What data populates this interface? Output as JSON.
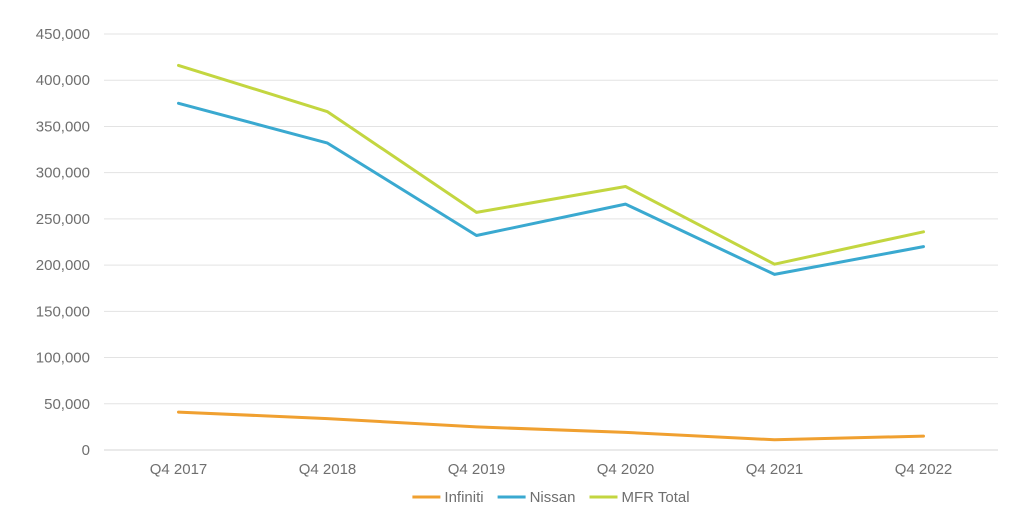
{
  "chart_data": {
    "type": "line",
    "title": "",
    "xlabel": "",
    "ylabel": "",
    "categories": [
      "Q4 2017",
      "Q4 2018",
      "Q4 2019",
      "Q4 2020",
      "Q4 2021",
      "Q4 2022"
    ],
    "ylim": [
      0,
      450000
    ],
    "yticks": [
      0,
      50000,
      100000,
      150000,
      200000,
      250000,
      300000,
      350000,
      400000,
      450000
    ],
    "ytick_labels": [
      "0",
      "50,000",
      "100,000",
      "150,000",
      "200,000",
      "250,000",
      "300,000",
      "350,000",
      "400,000",
      "450,000"
    ],
    "grid": true,
    "legend_position": "bottom",
    "series": [
      {
        "name": "Infiniti",
        "color": "#f0a030",
        "values": [
          41000,
          34000,
          25000,
          19000,
          11000,
          15000
        ]
      },
      {
        "name": "Nissan",
        "color": "#3aa9d0",
        "values": [
          375000,
          332000,
          232000,
          266000,
          190000,
          220000
        ]
      },
      {
        "name": "MFR Total",
        "color": "#c3d640",
        "values": [
          416000,
          366000,
          257000,
          285000,
          201000,
          236000
        ]
      }
    ]
  }
}
